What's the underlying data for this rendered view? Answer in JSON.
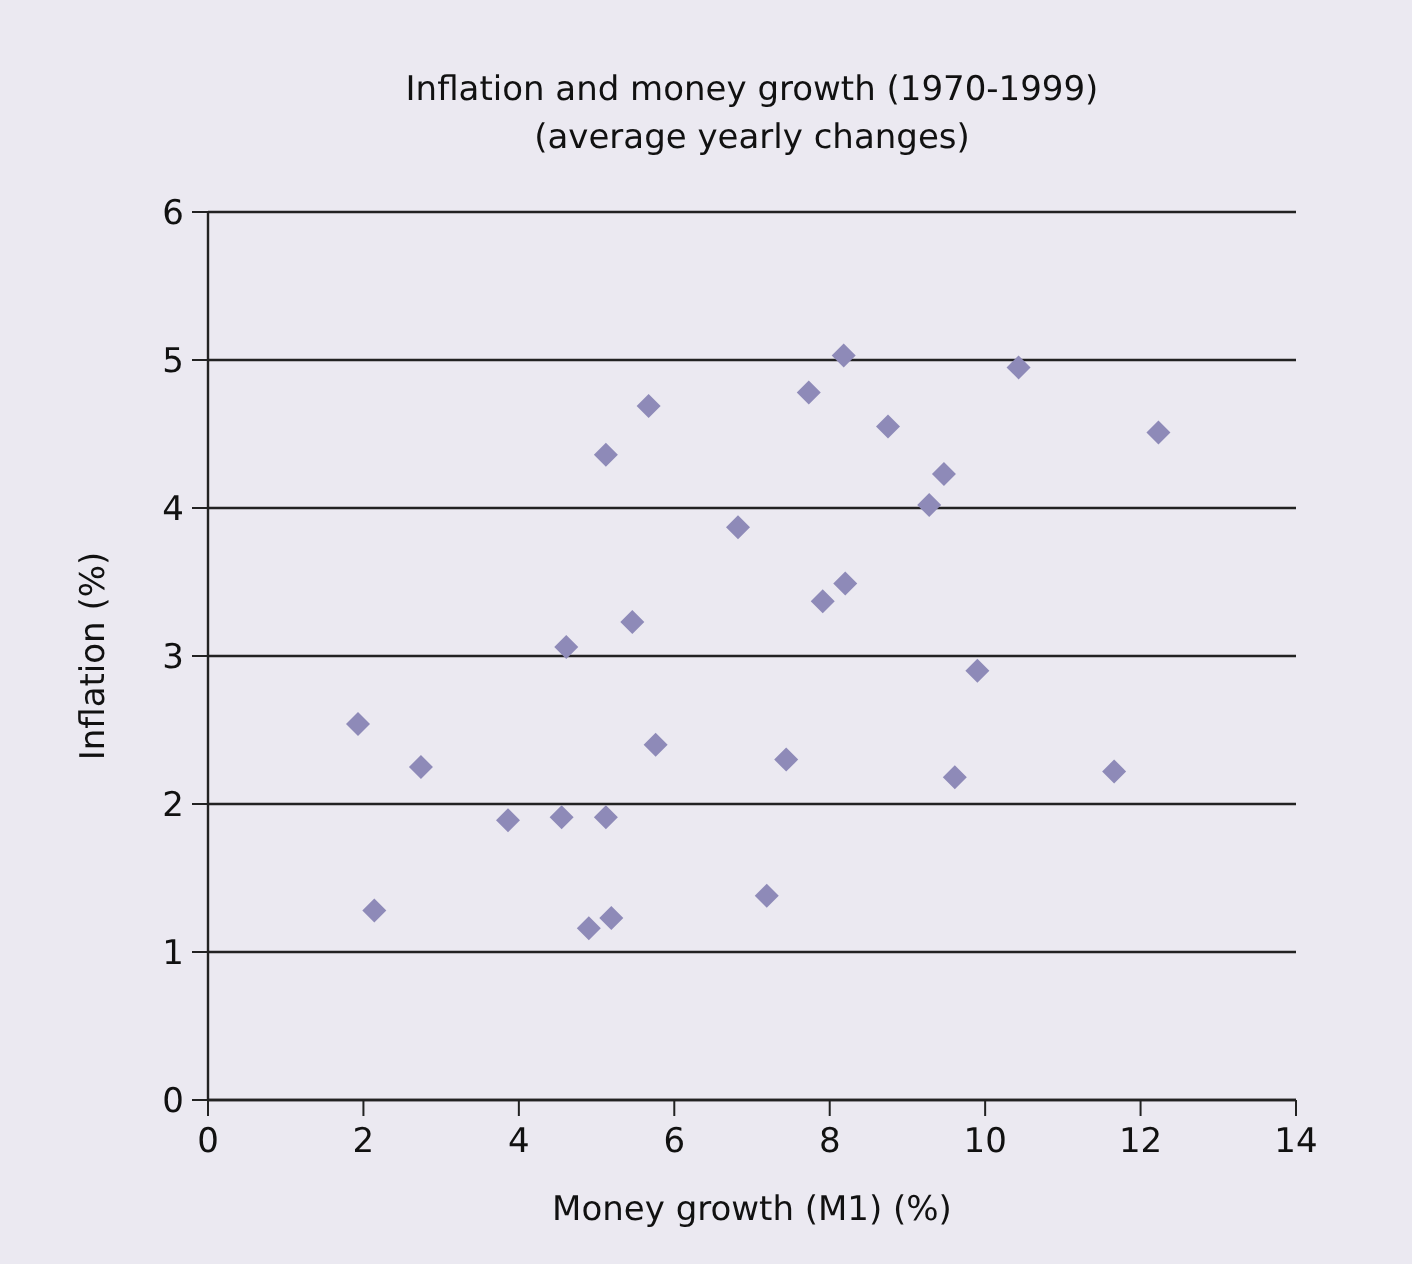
{
  "chart_data": {
    "type": "scatter",
    "title": "Inflation and money growth (1970-1999)",
    "subtitle": "(average yearly changes)",
    "xlabel": "Money growth (M1) (%)",
    "ylabel": "Inflation (%)",
    "xlim": [
      0,
      14
    ],
    "xticks": [
      0,
      2,
      4,
      6,
      8,
      10,
      12,
      14
    ],
    "ylim": [
      0,
      6
    ],
    "yticks": [
      0,
      1,
      2,
      3,
      4,
      5,
      6
    ],
    "grid": "y",
    "marker": "diamond",
    "series": [
      {
        "color": "#8e8ab8",
        "x": [
          5.67,
          5.12,
          6.82,
          5.46,
          4.61,
          1.93,
          2.74,
          5.76,
          3.86,
          4.55,
          5.12,
          2.14,
          4.9,
          5.19,
          8.18,
          10.43,
          7.73,
          8.75,
          12.23,
          9.47,
          9.28,
          8.2,
          7.91,
          9.9,
          7.44,
          9.61,
          11.66,
          7.19
        ],
        "values": [
          4.69,
          4.36,
          3.87,
          3.23,
          3.06,
          2.54,
          2.25,
          2.4,
          1.89,
          1.91,
          1.91,
          1.28,
          1.16,
          1.23,
          5.03,
          4.95,
          4.78,
          4.55,
          4.51,
          4.23,
          4.02,
          3.49,
          3.37,
          2.9,
          2.3,
          2.18,
          2.22,
          1.38
        ]
      }
    ]
  }
}
